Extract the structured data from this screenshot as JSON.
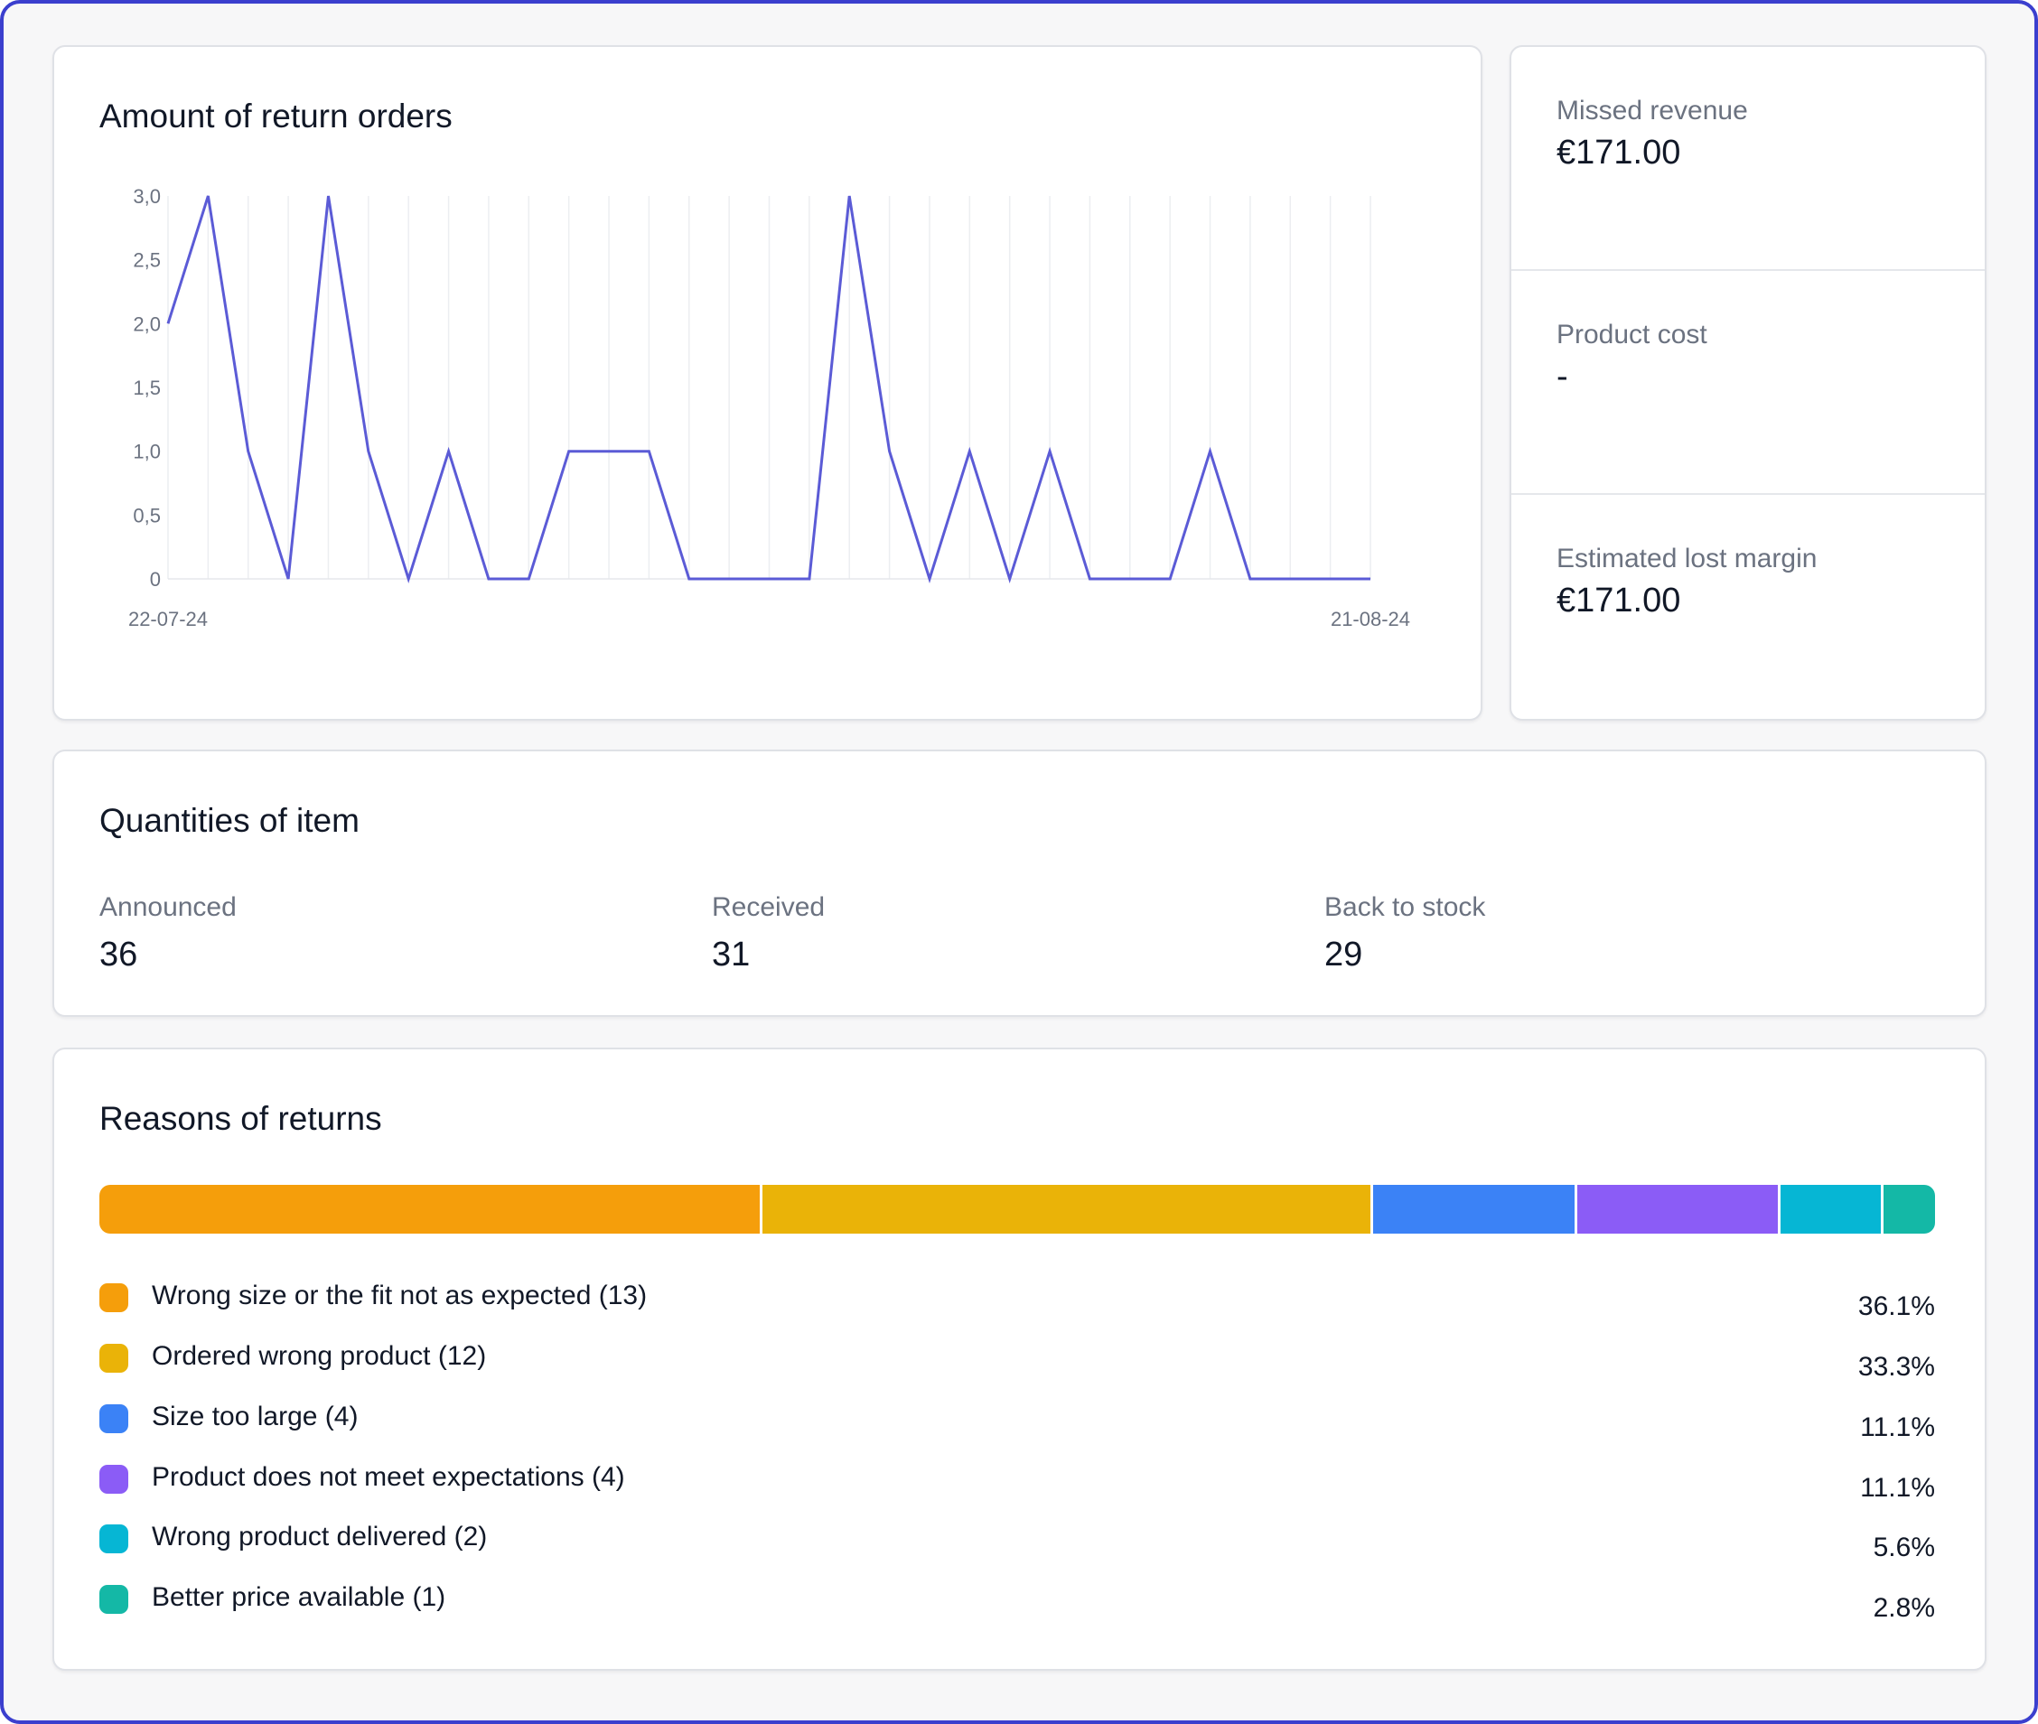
{
  "chart_card": {
    "title": "Amount of return orders"
  },
  "chart_data": {
    "type": "line",
    "title": "Amount of return orders",
    "x_start": "22-07-24",
    "x_end": "21-08-24",
    "x_tick_labels": [
      "22-07-24",
      "21-08-24"
    ],
    "y_tick_labels": [
      "0",
      "0,5",
      "1,0",
      "1,5",
      "2,0",
      "2,5",
      "3,0"
    ],
    "ylim": [
      0,
      3
    ],
    "grid": "vertical",
    "line_color": "#5b5bd6",
    "values": [
      2,
      3,
      1,
      0,
      3,
      1,
      0,
      1,
      0,
      0,
      1,
      1,
      1,
      0,
      0,
      0,
      0,
      3,
      1,
      0,
      1,
      0,
      1,
      0,
      0,
      0,
      1,
      0,
      0,
      0,
      0
    ]
  },
  "stats": [
    {
      "label": "Missed revenue",
      "value": "€171.00"
    },
    {
      "label": "Product cost",
      "value": "-"
    },
    {
      "label": "Estimated lost margin",
      "value": "€171.00"
    }
  ],
  "quantities": {
    "title": "Quantities of item",
    "items": [
      {
        "label": "Announced",
        "value": "36"
      },
      {
        "label": "Received",
        "value": "31"
      },
      {
        "label": "Back to stock",
        "value": "29"
      }
    ]
  },
  "reasons": {
    "title": "Reasons of returns",
    "items": [
      {
        "label": "Wrong size or the fit not as expected (13)",
        "percent": "36.1%",
        "share": 36.1,
        "color": "#f59e0b"
      },
      {
        "label": "Ordered wrong product (12)",
        "percent": "33.3%",
        "share": 33.3,
        "color": "#eab308"
      },
      {
        "label": "Size too large (4)",
        "percent": "11.1%",
        "share": 11.1,
        "color": "#3b82f6"
      },
      {
        "label": "Product does not meet expectations (4)",
        "percent": "11.1%",
        "share": 11.1,
        "color": "#8b5cf6"
      },
      {
        "label": "Wrong product delivered (2)",
        "percent": "5.6%",
        "share": 5.6,
        "color": "#06b6d4"
      },
      {
        "label": "Better price available (1)",
        "percent": "2.8%",
        "share": 2.8,
        "color": "#14b8a6"
      }
    ]
  }
}
